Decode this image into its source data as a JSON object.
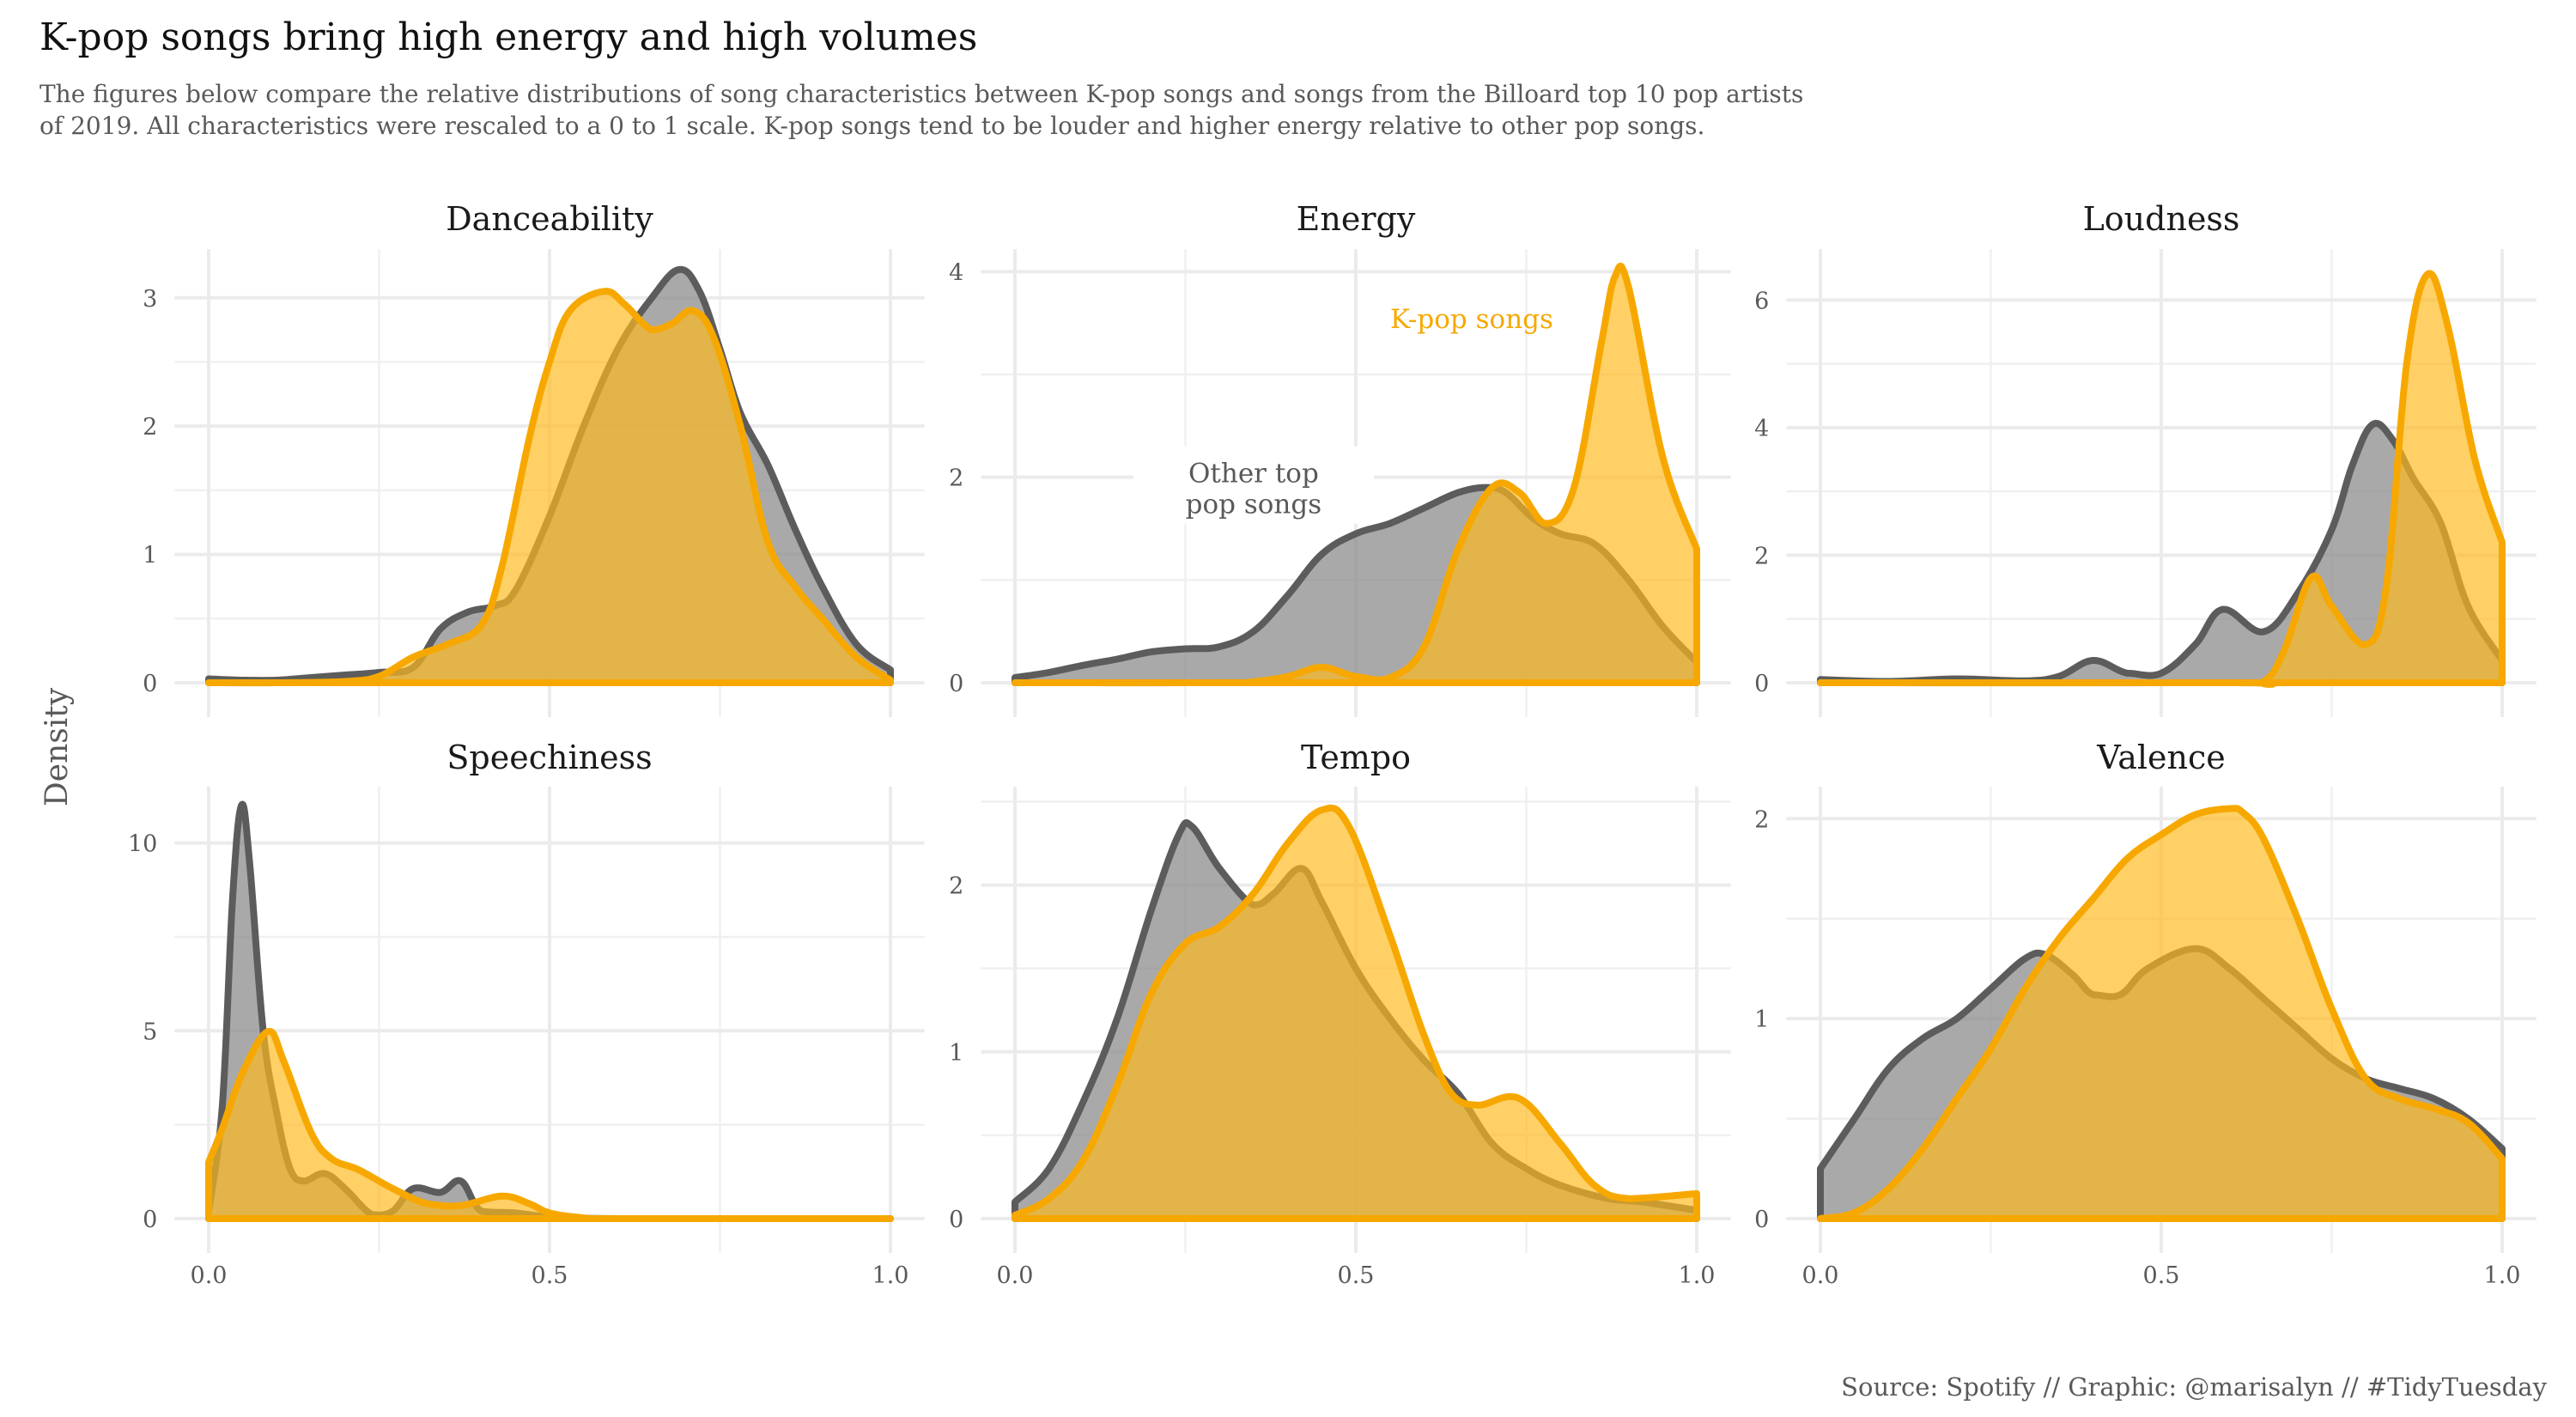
{
  "title": "K-pop songs bring high energy and high volumes",
  "subtitle_lines": [
    "The figures below compare the relative distributions of song characteristics between K-pop songs and songs from the Billoard top 10 pop artists",
    "of 2019. All characteristics were rescaled to a 0 to 1 scale. K-pop songs tend to be louder and higher energy relative to other pop songs."
  ],
  "caption": "Source: Spotify // Graphic: @marisalyn // #TidyTuesday",
  "colors": {
    "kpop_line": "#F7A800",
    "kpop_fill": "#FDBA1E",
    "other_line": "#5C5C5C",
    "other_fill": "#8C8C8C",
    "grid": "#EBEBEB",
    "text_muted": "#595959"
  },
  "chart_data": {
    "type": "area",
    "title": "K-pop songs bring high energy and high volumes",
    "xlabel": "",
    "ylabel": "Density",
    "grid": true,
    "legend": "inline annotations in Energy panel",
    "series_names": [
      "Other top pop songs",
      "K-pop songs"
    ],
    "annotations": [
      {
        "panel": "Energy",
        "text_lines": [
          "Other top",
          "pop songs"
        ],
        "series": "Other top pop songs",
        "x": 0.35,
        "y": 1.95
      },
      {
        "panel": "Energy",
        "text_lines": [
          "K-pop songs"
        ],
        "series": "K-pop songs",
        "x": 0.67,
        "y": 3.45
      }
    ],
    "x_ticks": [
      0.0,
      0.5,
      1.0
    ],
    "x_tick_labels": [
      "0.0",
      "0.5",
      "1.0"
    ],
    "xlim": [
      -0.05,
      1.05
    ],
    "panels": [
      {
        "name": "Danceability",
        "ylim": [
          0,
          3.38
        ],
        "y_ticks": [
          0,
          1,
          2,
          3
        ],
        "y_minor": [
          0.5,
          1.5,
          2.5
        ],
        "other": [
          [
            0,
            0.03
          ],
          [
            0.05,
            0.02
          ],
          [
            0.1,
            0.02
          ],
          [
            0.15,
            0.04
          ],
          [
            0.2,
            0.06
          ],
          [
            0.25,
            0.08
          ],
          [
            0.3,
            0.12
          ],
          [
            0.34,
            0.42
          ],
          [
            0.38,
            0.55
          ],
          [
            0.42,
            0.6
          ],
          [
            0.45,
            0.72
          ],
          [
            0.5,
            1.3
          ],
          [
            0.55,
            2.0
          ],
          [
            0.6,
            2.6
          ],
          [
            0.65,
            3.0
          ],
          [
            0.69,
            3.22
          ],
          [
            0.72,
            3.05
          ],
          [
            0.75,
            2.6
          ],
          [
            0.78,
            2.1
          ],
          [
            0.82,
            1.7
          ],
          [
            0.86,
            1.2
          ],
          [
            0.9,
            0.75
          ],
          [
            0.95,
            0.3
          ],
          [
            1.0,
            0.1
          ]
        ],
        "kpop": [
          [
            0,
            0.0
          ],
          [
            0.1,
            0.0
          ],
          [
            0.2,
            0.01
          ],
          [
            0.25,
            0.05
          ],
          [
            0.3,
            0.2
          ],
          [
            0.35,
            0.3
          ],
          [
            0.4,
            0.45
          ],
          [
            0.43,
            0.9
          ],
          [
            0.47,
            1.9
          ],
          [
            0.5,
            2.5
          ],
          [
            0.53,
            2.9
          ],
          [
            0.58,
            3.05
          ],
          [
            0.61,
            2.95
          ],
          [
            0.65,
            2.75
          ],
          [
            0.68,
            2.8
          ],
          [
            0.71,
            2.9
          ],
          [
            0.74,
            2.7
          ],
          [
            0.78,
            2.0
          ],
          [
            0.82,
            1.1
          ],
          [
            0.86,
            0.75
          ],
          [
            0.9,
            0.5
          ],
          [
            0.95,
            0.2
          ],
          [
            1.0,
            0.02
          ]
        ]
      },
      {
        "name": "Energy",
        "ylim": [
          0,
          4.22
        ],
        "y_ticks": [
          0,
          2,
          4
        ],
        "y_minor": [
          1,
          3
        ],
        "other": [
          [
            0,
            0.05
          ],
          [
            0.05,
            0.1
          ],
          [
            0.1,
            0.17
          ],
          [
            0.15,
            0.23
          ],
          [
            0.2,
            0.3
          ],
          [
            0.25,
            0.33
          ],
          [
            0.3,
            0.35
          ],
          [
            0.35,
            0.5
          ],
          [
            0.4,
            0.85
          ],
          [
            0.45,
            1.25
          ],
          [
            0.5,
            1.45
          ],
          [
            0.55,
            1.55
          ],
          [
            0.6,
            1.7
          ],
          [
            0.65,
            1.85
          ],
          [
            0.69,
            1.9
          ],
          [
            0.72,
            1.85
          ],
          [
            0.76,
            1.6
          ],
          [
            0.8,
            1.45
          ],
          [
            0.85,
            1.35
          ],
          [
            0.9,
            1.0
          ],
          [
            0.95,
            0.55
          ],
          [
            1.0,
            0.2
          ]
        ],
        "kpop": [
          [
            0,
            0.0
          ],
          [
            0.3,
            0.0
          ],
          [
            0.35,
            0.01
          ],
          [
            0.4,
            0.06
          ],
          [
            0.45,
            0.15
          ],
          [
            0.5,
            0.06
          ],
          [
            0.55,
            0.05
          ],
          [
            0.6,
            0.35
          ],
          [
            0.65,
            1.3
          ],
          [
            0.7,
            1.9
          ],
          [
            0.74,
            1.85
          ],
          [
            0.78,
            1.55
          ],
          [
            0.82,
            1.9
          ],
          [
            0.86,
            3.3
          ],
          [
            0.88,
            3.95
          ],
          [
            0.9,
            3.85
          ],
          [
            0.95,
            2.2
          ],
          [
            1.0,
            1.3
          ]
        ]
      },
      {
        "name": "Loudness",
        "ylim": [
          0,
          6.8
        ],
        "y_ticks": [
          0,
          2,
          4,
          6
        ],
        "y_minor": [
          1,
          3,
          5
        ],
        "other": [
          [
            0,
            0.05
          ],
          [
            0.1,
            0.02
          ],
          [
            0.2,
            0.06
          ],
          [
            0.3,
            0.03
          ],
          [
            0.35,
            0.1
          ],
          [
            0.4,
            0.35
          ],
          [
            0.45,
            0.15
          ],
          [
            0.5,
            0.15
          ],
          [
            0.55,
            0.6
          ],
          [
            0.59,
            1.15
          ],
          [
            0.65,
            0.8
          ],
          [
            0.7,
            1.4
          ],
          [
            0.75,
            2.4
          ],
          [
            0.78,
            3.4
          ],
          [
            0.81,
            4.05
          ],
          [
            0.84,
            3.8
          ],
          [
            0.87,
            3.2
          ],
          [
            0.91,
            2.5
          ],
          [
            0.95,
            1.2
          ],
          [
            1.0,
            0.35
          ]
        ],
        "kpop": [
          [
            0,
            0.0
          ],
          [
            0.6,
            0.0
          ],
          [
            0.65,
            0.02
          ],
          [
            0.68,
            0.5
          ],
          [
            0.72,
            1.65
          ],
          [
            0.75,
            1.2
          ],
          [
            0.8,
            0.6
          ],
          [
            0.83,
            1.5
          ],
          [
            0.86,
            5.0
          ],
          [
            0.89,
            6.4
          ],
          [
            0.92,
            5.6
          ],
          [
            0.96,
            3.5
          ],
          [
            1.0,
            2.2
          ]
        ]
      },
      {
        "name": "Speechiness",
        "ylim": [
          0,
          11.5
        ],
        "y_ticks": [
          0,
          5,
          10
        ],
        "y_minor": [
          2.5,
          7.5
        ],
        "other": [
          [
            0,
            0.2
          ],
          [
            0.02,
            3.0
          ],
          [
            0.035,
            8.5
          ],
          [
            0.048,
            11.0
          ],
          [
            0.06,
            9.5
          ],
          [
            0.08,
            5.0
          ],
          [
            0.1,
            2.8
          ],
          [
            0.12,
            1.3
          ],
          [
            0.14,
            1.0
          ],
          [
            0.17,
            1.2
          ],
          [
            0.2,
            0.8
          ],
          [
            0.24,
            0.1
          ],
          [
            0.27,
            0.2
          ],
          [
            0.3,
            0.8
          ],
          [
            0.34,
            0.7
          ],
          [
            0.37,
            1.0
          ],
          [
            0.4,
            0.2
          ],
          [
            0.45,
            0.15
          ],
          [
            0.5,
            0.05
          ],
          [
            0.6,
            0.0
          ],
          [
            1.0,
            0.0
          ]
        ],
        "kpop": [
          [
            0,
            1.5
          ],
          [
            0.02,
            2.4
          ],
          [
            0.05,
            3.9
          ],
          [
            0.087,
            4.98
          ],
          [
            0.11,
            4.2
          ],
          [
            0.15,
            2.3
          ],
          [
            0.18,
            1.6
          ],
          [
            0.22,
            1.3
          ],
          [
            0.27,
            0.8
          ],
          [
            0.32,
            0.4
          ],
          [
            0.37,
            0.35
          ],
          [
            0.43,
            0.6
          ],
          [
            0.47,
            0.4
          ],
          [
            0.5,
            0.15
          ],
          [
            0.55,
            0.02
          ],
          [
            0.6,
            0.0
          ],
          [
            1.0,
            0.0
          ]
        ]
      },
      {
        "name": "Tempo",
        "ylim": [
          0,
          2.59
        ],
        "y_ticks": [
          0,
          1,
          2
        ],
        "y_minor": [
          0.5,
          1.5,
          2.5
        ],
        "other": [
          [
            0,
            0.1
          ],
          [
            0.05,
            0.3
          ],
          [
            0.1,
            0.7
          ],
          [
            0.15,
            1.2
          ],
          [
            0.2,
            1.85
          ],
          [
            0.24,
            2.3
          ],
          [
            0.26,
            2.35
          ],
          [
            0.3,
            2.1
          ],
          [
            0.35,
            1.88
          ],
          [
            0.38,
            1.95
          ],
          [
            0.42,
            2.1
          ],
          [
            0.45,
            1.9
          ],
          [
            0.5,
            1.5
          ],
          [
            0.55,
            1.2
          ],
          [
            0.6,
            0.95
          ],
          [
            0.65,
            0.75
          ],
          [
            0.7,
            0.45
          ],
          [
            0.75,
            0.3
          ],
          [
            0.8,
            0.2
          ],
          [
            0.87,
            0.12
          ],
          [
            0.92,
            0.1
          ],
          [
            1.0,
            0.05
          ]
        ],
        "kpop": [
          [
            0,
            0.02
          ],
          [
            0.05,
            0.12
          ],
          [
            0.1,
            0.35
          ],
          [
            0.15,
            0.8
          ],
          [
            0.2,
            1.35
          ],
          [
            0.25,
            1.65
          ],
          [
            0.3,
            1.75
          ],
          [
            0.35,
            1.95
          ],
          [
            0.4,
            2.25
          ],
          [
            0.45,
            2.45
          ],
          [
            0.49,
            2.35
          ],
          [
            0.55,
            1.7
          ],
          [
            0.6,
            1.1
          ],
          [
            0.64,
            0.75
          ],
          [
            0.68,
            0.68
          ],
          [
            0.74,
            0.72
          ],
          [
            0.8,
            0.45
          ],
          [
            0.85,
            0.2
          ],
          [
            0.9,
            0.12
          ],
          [
            1.0,
            0.15
          ]
        ]
      },
      {
        "name": "Valence",
        "ylim": [
          0,
          2.16
        ],
        "y_ticks": [
          0,
          1,
          2
        ],
        "y_minor": [
          0.5,
          1.5
        ],
        "other": [
          [
            0,
            0.25
          ],
          [
            0.05,
            0.5
          ],
          [
            0.1,
            0.75
          ],
          [
            0.15,
            0.9
          ],
          [
            0.2,
            1.0
          ],
          [
            0.25,
            1.15
          ],
          [
            0.3,
            1.3
          ],
          [
            0.33,
            1.32
          ],
          [
            0.37,
            1.22
          ],
          [
            0.4,
            1.12
          ],
          [
            0.44,
            1.12
          ],
          [
            0.48,
            1.25
          ],
          [
            0.55,
            1.35
          ],
          [
            0.6,
            1.25
          ],
          [
            0.65,
            1.1
          ],
          [
            0.7,
            0.95
          ],
          [
            0.75,
            0.8
          ],
          [
            0.8,
            0.7
          ],
          [
            0.85,
            0.65
          ],
          [
            0.9,
            0.6
          ],
          [
            0.95,
            0.5
          ],
          [
            1.0,
            0.35
          ]
        ],
        "kpop": [
          [
            0,
            0.0
          ],
          [
            0.05,
            0.03
          ],
          [
            0.1,
            0.15
          ],
          [
            0.15,
            0.35
          ],
          [
            0.2,
            0.6
          ],
          [
            0.25,
            0.85
          ],
          [
            0.3,
            1.15
          ],
          [
            0.35,
            1.4
          ],
          [
            0.4,
            1.6
          ],
          [
            0.45,
            1.8
          ],
          [
            0.5,
            1.92
          ],
          [
            0.55,
            2.02
          ],
          [
            0.6,
            2.05
          ],
          [
            0.62,
            2.03
          ],
          [
            0.65,
            1.9
          ],
          [
            0.7,
            1.5
          ],
          [
            0.75,
            1.05
          ],
          [
            0.8,
            0.7
          ],
          [
            0.85,
            0.6
          ],
          [
            0.9,
            0.55
          ],
          [
            0.95,
            0.48
          ],
          [
            1.0,
            0.3
          ]
        ]
      }
    ]
  }
}
